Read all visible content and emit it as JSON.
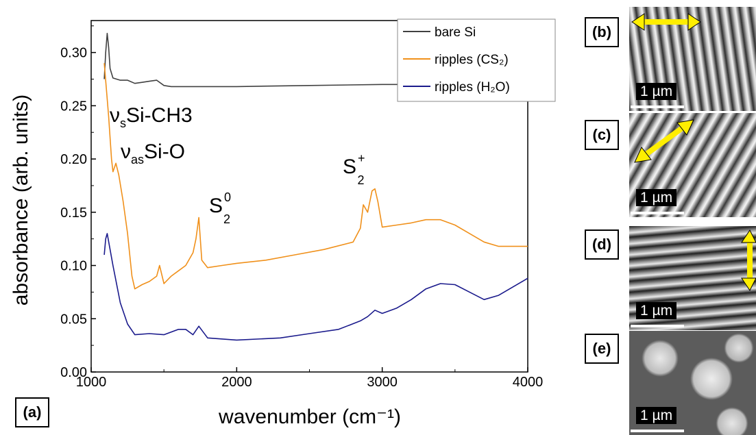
{
  "chart_data": {
    "type": "line",
    "xlabel": "wavenumber (cm⁻¹)",
    "ylabel": "absorbance (arb. units)",
    "xlim": [
      1000,
      4000
    ],
    "ylim": [
      0.0,
      0.33
    ],
    "xticks": [
      "1000",
      "2000",
      "3000",
      "4000"
    ],
    "yticks": [
      "0.00",
      "0.05",
      "0.10",
      "0.15",
      "0.20",
      "0.25",
      "0.30"
    ],
    "legend_position": "top-right",
    "series": [
      {
        "name": "bare Si",
        "color": "#404040",
        "x": [
          1090,
          1100,
          1110,
          1120,
          1130,
          1150,
          1200,
          1250,
          1300,
          1350,
          1400,
          1450,
          1500,
          1550,
          1600,
          1700,
          1800,
          2000,
          2500,
          3000,
          3500,
          4000
        ],
        "y": [
          0.275,
          0.3,
          0.318,
          0.305,
          0.285,
          0.276,
          0.274,
          0.274,
          0.271,
          0.272,
          0.273,
          0.274,
          0.269,
          0.268,
          0.268,
          0.268,
          0.268,
          0.268,
          0.269,
          0.27,
          0.27,
          0.27
        ]
      },
      {
        "name": "ripples (CS₂)",
        "color": "#f0901a",
        "x": [
          1090,
          1120,
          1140,
          1150,
          1170,
          1190,
          1220,
          1250,
          1280,
          1300,
          1350,
          1400,
          1450,
          1470,
          1500,
          1550,
          1600,
          1650,
          1700,
          1720,
          1740,
          1760,
          1800,
          1900,
          2000,
          2200,
          2400,
          2600,
          2800,
          2850,
          2870,
          2900,
          2930,
          2950,
          2970,
          3000,
          3100,
          3200,
          3300,
          3400,
          3500,
          3600,
          3700,
          3800,
          4000
        ],
        "y": [
          0.29,
          0.24,
          0.2,
          0.188,
          0.196,
          0.185,
          0.16,
          0.13,
          0.09,
          0.078,
          0.082,
          0.085,
          0.09,
          0.1,
          0.083,
          0.09,
          0.095,
          0.1,
          0.112,
          0.125,
          0.145,
          0.105,
          0.098,
          0.1,
          0.102,
          0.105,
          0.11,
          0.115,
          0.122,
          0.135,
          0.157,
          0.15,
          0.17,
          0.172,
          0.16,
          0.136,
          0.138,
          0.14,
          0.143,
          0.143,
          0.138,
          0.13,
          0.122,
          0.118,
          0.118
        ]
      },
      {
        "name": "ripples (H₂O)",
        "color": "#1a1a8c",
        "x": [
          1090,
          1100,
          1110,
          1130,
          1150,
          1200,
          1250,
          1300,
          1400,
          1500,
          1600,
          1650,
          1700,
          1740,
          1800,
          2000,
          2300,
          2500,
          2700,
          2850,
          2900,
          2950,
          3000,
          3100,
          3200,
          3300,
          3400,
          3500,
          3600,
          3700,
          3800,
          4000
        ],
        "y": [
          0.11,
          0.125,
          0.13,
          0.115,
          0.1,
          0.065,
          0.045,
          0.035,
          0.036,
          0.035,
          0.04,
          0.04,
          0.035,
          0.043,
          0.032,
          0.03,
          0.032,
          0.036,
          0.04,
          0.048,
          0.052,
          0.058,
          0.055,
          0.06,
          0.068,
          0.078,
          0.083,
          0.082,
          0.075,
          0.068,
          0.072,
          0.088
        ]
      }
    ],
    "annotations": [
      {
        "text": "νsSi-CH3",
        "main": "ν",
        "sub": "s",
        "rest": "Si-CH3"
      },
      {
        "text": "νasSi-O",
        "main": "ν",
        "sub": "as",
        "rest": "Si-O"
      },
      {
        "text": "S20",
        "main": "S",
        "sub": "2",
        "sup": "0"
      },
      {
        "text": "S2+",
        "main": "S",
        "sub": "2",
        "sup": "+"
      }
    ]
  },
  "panels": {
    "a": "(a)",
    "b": "(b)",
    "c": "(c)",
    "d": "(d)",
    "e": "(e)"
  },
  "scale_bar_label": "1 µm",
  "colors": {
    "arrow": "#ffee00"
  }
}
